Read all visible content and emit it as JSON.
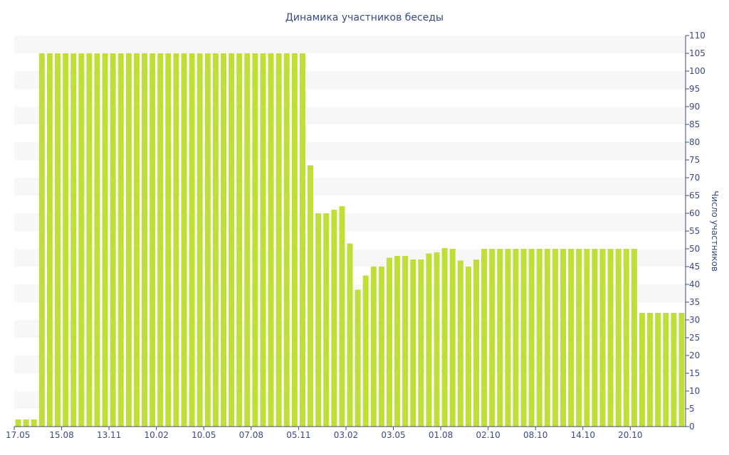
{
  "colors": {
    "bar": "#bfdf38",
    "band": "#f7f7f7",
    "text": "#3a4a86"
  },
  "chart_data": {
    "type": "bar",
    "title": "Динамика участников беседы",
    "xlabel": "",
    "ylabel": "Число участников",
    "ylim": [
      0,
      110
    ],
    "y_ticks": [
      0,
      5,
      10,
      15,
      20,
      25,
      30,
      35,
      40,
      45,
      50,
      55,
      60,
      65,
      70,
      75,
      80,
      85,
      90,
      95,
      100,
      105,
      110
    ],
    "x_tick_labels": [
      {
        "label": "17.05",
        "index": 0
      },
      {
        "label": "15.08",
        "index": 6
      },
      {
        "label": "13.11",
        "index": 12
      },
      {
        "label": "10.02",
        "index": 18
      },
      {
        "label": "10.05",
        "index": 24
      },
      {
        "label": "07.08",
        "index": 30
      },
      {
        "label": "05.11",
        "index": 36
      },
      {
        "label": "03.02",
        "index": 42
      },
      {
        "label": "03.05",
        "index": 48
      },
      {
        "label": "01.08",
        "index": 54
      },
      {
        "label": "02.10",
        "index": 60
      },
      {
        "label": "08.10",
        "index": 66
      },
      {
        "label": "14.10",
        "index": 72
      },
      {
        "label": "20.10",
        "index": 78
      }
    ],
    "series": [
      {
        "name": "Число участников",
        "values": [
          2,
          2,
          2,
          105,
          105,
          105,
          105,
          105,
          105,
          105,
          105,
          105,
          105,
          105,
          105,
          105,
          105,
          105,
          105,
          105,
          105,
          105,
          105,
          105,
          105,
          105,
          105,
          105,
          105,
          105,
          105,
          105,
          105,
          105,
          105,
          105,
          105,
          73.5,
          60,
          60,
          61,
          62,
          51.5,
          38.5,
          42.5,
          45,
          45,
          47.5,
          48,
          48,
          47,
          47,
          48.7,
          49,
          50.2,
          50,
          46.7,
          45,
          47,
          50,
          50,
          50,
          50,
          50,
          50,
          50,
          50,
          50,
          50,
          50,
          50,
          50,
          50,
          50,
          50,
          50,
          50,
          50,
          50,
          32,
          32,
          32,
          32,
          32,
          32
        ]
      }
    ]
  }
}
